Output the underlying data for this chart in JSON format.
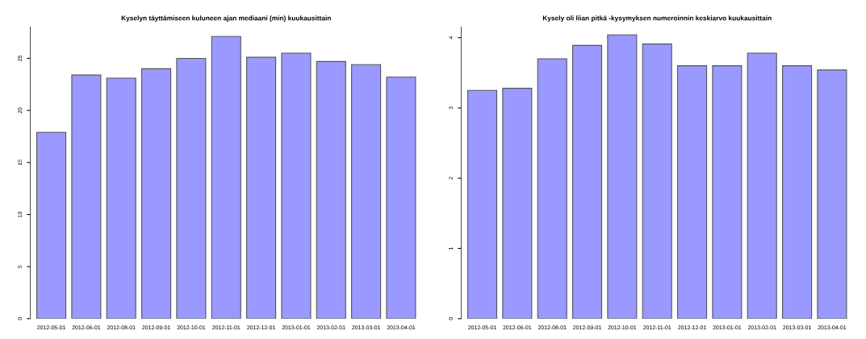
{
  "chart_data": [
    {
      "type": "bar",
      "title": "Kyselyn täyttämiseen kuluneen ajan mediaani (min) kuukausittain",
      "categories": [
        "2012-05-01",
        "2012-06-01",
        "2012-08-01",
        "2012-09-01",
        "2012-10-01",
        "2012-11-01",
        "2012-12-01",
        "2013-01-01",
        "2013-02-01",
        "2013-03-01",
        "2013-04-01"
      ],
      "values": [
        17.9,
        23.4,
        23.1,
        24.0,
        25.0,
        27.1,
        25.1,
        25.5,
        24.7,
        24.4,
        23.2
      ],
      "color": "#9999ff",
      "ylim": [
        0,
        28
      ],
      "yticks": [
        0,
        5,
        10,
        15,
        20,
        25
      ],
      "grid": false
    },
    {
      "type": "bar",
      "title": "Kysely oli liian pitkä -kysymyksen numeroinnin keskiarvo kuukausittain",
      "categories": [
        "2012-05-01",
        "2012-06-01",
        "2012-08-01",
        "2012-09-01",
        "2012-10-01",
        "2012-11-01",
        "2012-12-01",
        "2013-01-01",
        "2013-02-01",
        "2013-03-01",
        "2013-04-01"
      ],
      "values": [
        3.25,
        3.28,
        3.7,
        3.89,
        4.04,
        3.91,
        3.6,
        3.6,
        3.78,
        3.6,
        3.54
      ],
      "color": "#9999ff",
      "ylim": [
        0,
        4.15
      ],
      "yticks": [
        0,
        1,
        2,
        3,
        4
      ],
      "grid": false
    }
  ]
}
